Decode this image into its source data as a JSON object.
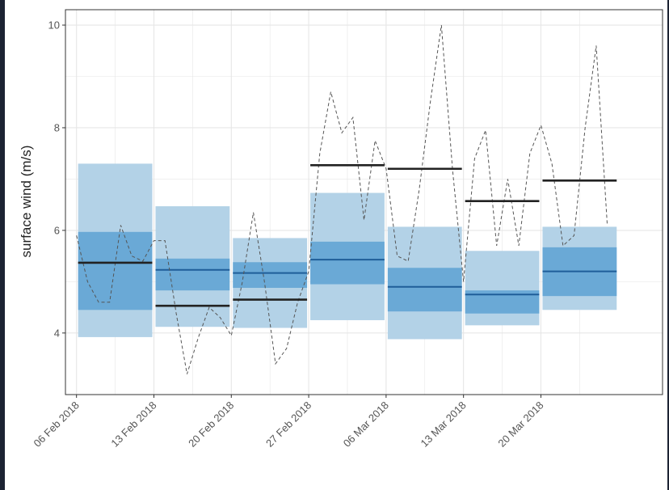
{
  "chart_data": {
    "type": "box-forecast",
    "title": "",
    "xlabel": "",
    "ylabel": "surface wind (m/s)",
    "ylim": [
      2.8,
      10.3
    ],
    "yticks": [
      4,
      6,
      8,
      10
    ],
    "ytick_labels": [
      "4",
      "6",
      "8",
      "10"
    ],
    "xlim": [
      "2018-02-05",
      "2018-03-31"
    ],
    "xticks": [
      "2018-02-06",
      "2018-02-13",
      "2018-02-20",
      "2018-02-27",
      "2018-03-06",
      "2018-03-13",
      "2018-03-20"
    ],
    "xtick_labels": [
      "06 Feb 2018",
      "13 Feb 2018",
      "20 Feb 2018",
      "27 Feb 2018",
      "06 Mar 2018",
      "13 Mar 2018",
      "20 Mar 2018"
    ],
    "grid": true,
    "weeks": [
      {
        "start": "2018-02-06",
        "end": "2018-02-13",
        "outer_low": 3.92,
        "outer_high": 7.3,
        "inner_low": 4.45,
        "inner_high": 5.97,
        "median": 5.37,
        "observed_mean": 5.37
      },
      {
        "start": "2018-02-13",
        "end": "2018-02-20",
        "outer_low": 4.12,
        "outer_high": 6.47,
        "inner_low": 4.83,
        "inner_high": 5.45,
        "median": 5.23,
        "observed_mean": 4.53
      },
      {
        "start": "2018-02-20",
        "end": "2018-02-27",
        "outer_low": 4.1,
        "outer_high": 5.85,
        "inner_low": 4.88,
        "inner_high": 5.38,
        "median": 5.17,
        "observed_mean": 4.65
      },
      {
        "start": "2018-02-27",
        "end": "2018-03-06",
        "outer_low": 4.25,
        "outer_high": 6.73,
        "inner_low": 4.95,
        "inner_high": 5.78,
        "median": 5.43,
        "observed_mean": 7.27
      },
      {
        "start": "2018-03-06",
        "end": "2018-03-13",
        "outer_low": 3.88,
        "outer_high": 6.07,
        "inner_low": 4.42,
        "inner_high": 5.27,
        "median": 4.9,
        "observed_mean": 7.2
      },
      {
        "start": "2018-03-13",
        "end": "2018-03-20",
        "outer_low": 4.15,
        "outer_high": 5.6,
        "inner_low": 4.38,
        "inner_high": 4.83,
        "median": 4.75,
        "observed_mean": 6.57
      },
      {
        "start": "2018-03-20",
        "end": "2018-03-27",
        "outer_low": 4.45,
        "outer_high": 6.07,
        "inner_low": 4.72,
        "inner_high": 5.67,
        "median": 5.2,
        "observed_mean": 6.97
      }
    ],
    "observed_daily": {
      "x": [
        "2018-02-06",
        "2018-02-07",
        "2018-02-08",
        "2018-02-09",
        "2018-02-10",
        "2018-02-11",
        "2018-02-12",
        "2018-02-13",
        "2018-02-14",
        "2018-02-15",
        "2018-02-16",
        "2018-02-17",
        "2018-02-18",
        "2018-02-19",
        "2018-02-20",
        "2018-02-21",
        "2018-02-22",
        "2018-02-23",
        "2018-02-24",
        "2018-02-25",
        "2018-02-26",
        "2018-02-27",
        "2018-02-28",
        "2018-03-01",
        "2018-03-02",
        "2018-03-03",
        "2018-03-04",
        "2018-03-05",
        "2018-03-06",
        "2018-03-07",
        "2018-03-08",
        "2018-03-09",
        "2018-03-10",
        "2018-03-11",
        "2018-03-12",
        "2018-03-13",
        "2018-03-14",
        "2018-03-15",
        "2018-03-16",
        "2018-03-17",
        "2018-03-18",
        "2018-03-19",
        "2018-03-20",
        "2018-03-21",
        "2018-03-22",
        "2018-03-23",
        "2018-03-24",
        "2018-03-25",
        "2018-03-26"
      ],
      "y": [
        5.9,
        5.0,
        4.6,
        4.6,
        6.1,
        5.5,
        5.4,
        5.8,
        5.8,
        4.4,
        3.2,
        3.9,
        4.5,
        4.3,
        3.95,
        5.0,
        6.35,
        5.0,
        3.4,
        3.7,
        4.6,
        5.2,
        7.5,
        8.7,
        7.9,
        8.2,
        6.2,
        7.75,
        7.2,
        5.5,
        5.4,
        6.8,
        8.5,
        10.0,
        7.2,
        5.0,
        7.4,
        7.95,
        5.7,
        7.0,
        5.7,
        7.5,
        8.05,
        7.3,
        5.7,
        5.9,
        8.0,
        9.6,
        6.1
      ]
    }
  },
  "colors": {
    "outer_band": "#b3d2e7",
    "inner_band": "#6aa9d6",
    "median_line": "#1f5e99",
    "observed_mean_line": "#222222",
    "observed_daily_line": "#555555",
    "grid": "#e6e6e6",
    "panel_border": "#333333"
  }
}
